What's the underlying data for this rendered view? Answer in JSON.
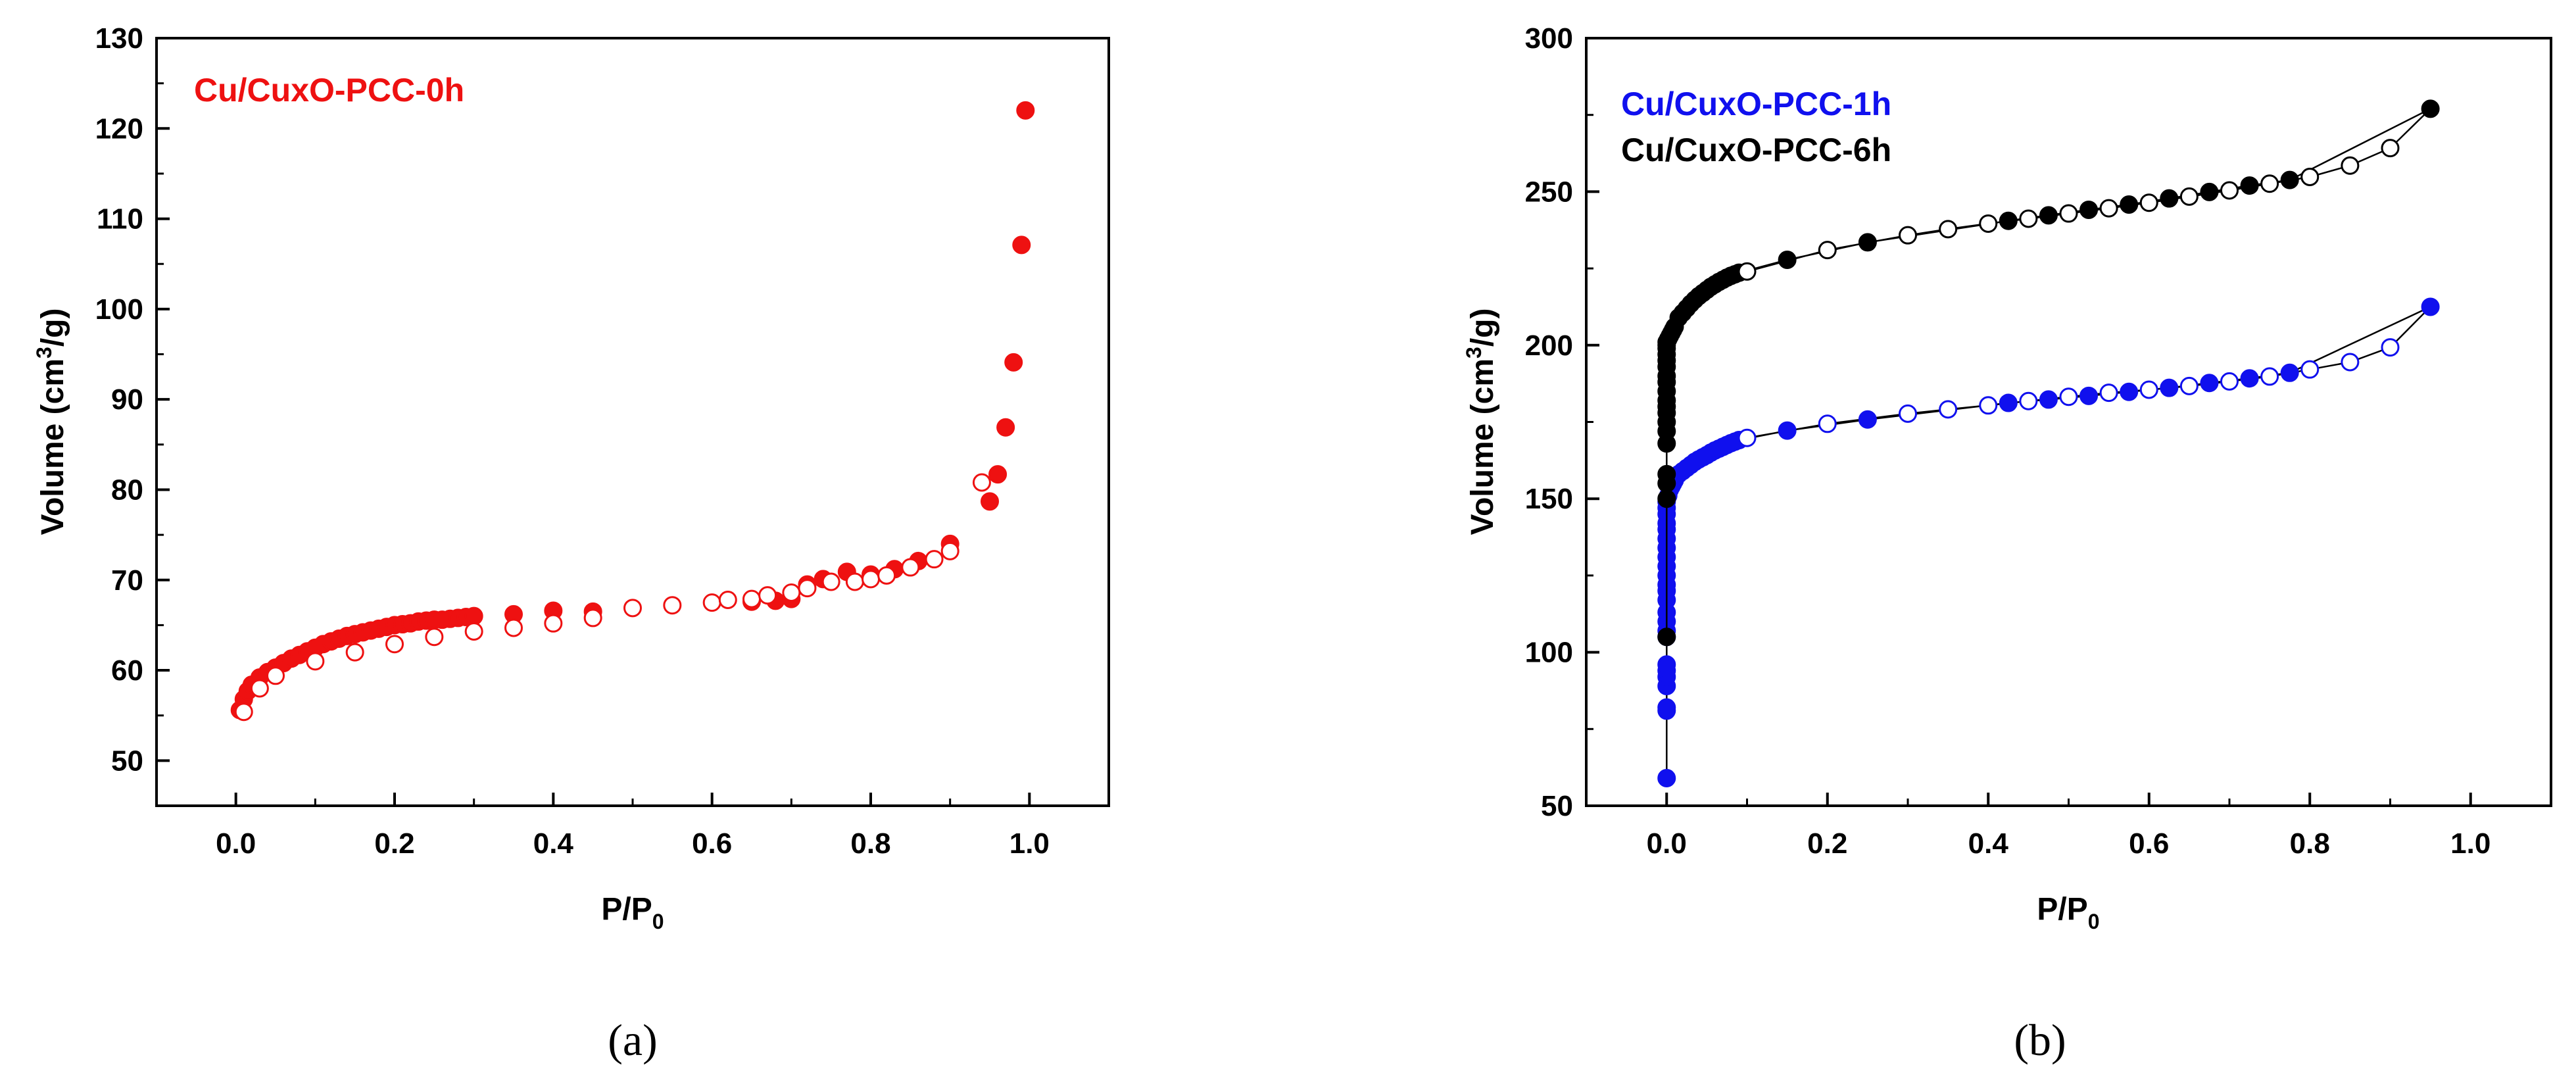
{
  "chart_data": [
    {
      "type": "scatter",
      "caption": "(a)",
      "xlabel": {
        "base": "P/P",
        "sub": "0"
      },
      "ylabel": {
        "pre": "Volume (cm",
        "sup": "3",
        "post": "/g)"
      },
      "xlim": [
        -0.1,
        1.1
      ],
      "ylim": [
        45,
        130
      ],
      "xticks": [
        0.0,
        0.2,
        0.4,
        0.6,
        0.8,
        1.0
      ],
      "xtick_labels": [
        "0.0",
        "0.2",
        "0.4",
        "0.6",
        "0.8",
        "1.0"
      ],
      "yticks": [
        50,
        60,
        70,
        80,
        90,
        100,
        110,
        120,
        130
      ],
      "ytick_labels": [
        "50",
        "60",
        "70",
        "80",
        "90",
        "100",
        "110",
        "120",
        "130"
      ],
      "legend": [
        {
          "label": "Cu/CuxO-PCC-0h",
          "color": "#ee1111"
        }
      ],
      "legend_position": "top-left",
      "series": [
        {
          "name": "Cu/CuxO-PCC-0h",
          "color": "#ee1111",
          "connected": false,
          "adsorption": {
            "x": [
              0.005,
              0.01,
              0.015,
              0.02,
              0.03,
              0.04,
              0.05,
              0.06,
              0.07,
              0.08,
              0.09,
              0.1,
              0.11,
              0.12,
              0.13,
              0.14,
              0.15,
              0.16,
              0.17,
              0.18,
              0.19,
              0.2,
              0.21,
              0.22,
              0.23,
              0.24,
              0.25,
              0.26,
              0.27,
              0.28,
              0.29,
              0.3,
              0.35,
              0.4,
              0.45,
              0.65,
              0.68,
              0.7,
              0.72,
              0.74,
              0.77,
              0.8,
              0.83,
              0.86,
              0.9,
              0.95,
              0.96,
              0.97,
              0.98,
              0.99,
              0.995
            ],
            "y": [
              55.6,
              56.8,
              57.7,
              58.4,
              59.2,
              59.8,
              60.3,
              60.8,
              61.3,
              61.7,
              62.1,
              62.5,
              62.9,
              63.2,
              63.5,
              63.8,
              64.0,
              64.2,
              64.4,
              64.6,
              64.8,
              65.0,
              65.1,
              65.2,
              65.4,
              65.5,
              65.6,
              65.6,
              65.7,
              65.8,
              65.9,
              66.0,
              66.2,
              66.6,
              66.5,
              67.6,
              67.7,
              67.9,
              69.5,
              70.1,
              70.9,
              70.6,
              71.2,
              72.1,
              74.0,
              78.7,
              81.7,
              86.9,
              94.1,
              107.1,
              122.0
            ]
          },
          "desorption": {
            "x": [
              0.01,
              0.03,
              0.05,
              0.1,
              0.15,
              0.2,
              0.25,
              0.3,
              0.35,
              0.4,
              0.45,
              0.5,
              0.55,
              0.6,
              0.62,
              0.65,
              0.67,
              0.7,
              0.72,
              0.75,
              0.78,
              0.8,
              0.82,
              0.85,
              0.88,
              0.9,
              0.94
            ],
            "y": [
              55.4,
              58.0,
              59.4,
              61.0,
              62.0,
              62.9,
              63.7,
              64.3,
              64.7,
              65.2,
              65.8,
              66.9,
              67.2,
              67.5,
              67.8,
              67.9,
              68.3,
              68.6,
              69.1,
              69.8,
              69.8,
              70.1,
              70.5,
              71.4,
              72.3,
              73.2,
              80.8
            ]
          }
        }
      ]
    },
    {
      "type": "line",
      "caption": "(b)",
      "xlabel": {
        "base": "P/P",
        "sub": "0"
      },
      "ylabel": {
        "pre": "Volume (cm",
        "sup": "3",
        "post": "/g)"
      },
      "xlim": [
        -0.1,
        1.1
      ],
      "ylim": [
        50,
        300
      ],
      "xticks": [
        0.0,
        0.2,
        0.4,
        0.6,
        0.8,
        1.0
      ],
      "xtick_labels": [
        "0.0",
        "0.2",
        "0.4",
        "0.6",
        "0.8",
        "1.0"
      ],
      "yticks": [
        50,
        100,
        150,
        200,
        250,
        300
      ],
      "ytick_labels": [
        "50",
        "100",
        "150",
        "200",
        "250",
        "300"
      ],
      "legend": [
        {
          "label": "Cu/CuxO-PCC-1h",
          "color": "#1010ee"
        },
        {
          "label": "Cu/CuxO-PCC-6h",
          "color": "#000000"
        }
      ],
      "legend_position": "top-left",
      "series": [
        {
          "name": "Cu/CuxO-PCC-1h",
          "color": "#1010ee",
          "connected": true,
          "adsorption": {
            "x": [
              0.0,
              0.0,
              0.0,
              0.0,
              0.0,
              0.0,
              0.0,
              0.0,
              0.0,
              0.0,
              0.0,
              0.0,
              0.0,
              0.0,
              0.0,
              0.0,
              0.0,
              0.0,
              0.0,
              0.0,
              0.0,
              0.0,
              0.0,
              0.0,
              0.002,
              0.004,
              0.006,
              0.008,
              0.01,
              0.015,
              0.02,
              0.025,
              0.03,
              0.035,
              0.04,
              0.045,
              0.05,
              0.055,
              0.06,
              0.065,
              0.07,
              0.075,
              0.08,
              0.085,
              0.09,
              0.15,
              0.25,
              0.425,
              0.475,
              0.525,
              0.575,
              0.625,
              0.675,
              0.725,
              0.775,
              0.95
            ],
            "y": [
              59,
              81,
              82,
              89,
              92,
              94,
              96,
              105,
              107,
              110,
              113,
              117,
              120,
              122,
              125,
              128,
              131,
              134,
              137,
              140,
              142,
              145,
              147,
              149,
              151,
              153,
              154,
              155,
              156,
              158,
              159,
              160,
              161,
              162,
              162.8,
              163.5,
              164.2,
              165,
              165.7,
              166.3,
              166.9,
              167.5,
              168.1,
              168.6,
              169.1,
              172.2,
              175.8,
              181.2,
              182.3,
              183.5,
              184.8,
              186.1,
              187.7,
              189.2,
              191,
              212.5
            ]
          },
          "desorption": {
            "x": [
              0.1,
              0.2,
              0.3,
              0.35,
              0.4,
              0.45,
              0.5,
              0.55,
              0.6,
              0.65,
              0.7,
              0.75,
              0.8,
              0.85,
              0.9
            ],
            "y": [
              169.8,
              174.4,
              177.7,
              179.1,
              180.4,
              181.8,
              183.2,
              184.5,
              185.5,
              186.7,
              188.2,
              189.8,
              192.1,
              194.5,
              199.3
            ]
          }
        },
        {
          "name": "Cu/CuxO-PCC-6h",
          "color": "#000000",
          "connected": true,
          "adsorption": {
            "x": [
              0.0,
              0.0,
              0.0,
              0.0,
              0.0,
              0.0,
              0.0,
              0.0,
              0.0,
              0.0,
              0.0,
              0.0,
              0.0,
              0.0,
              0.0,
              0.0,
              0.0,
              0.0,
              0.0,
              0.002,
              0.004,
              0.006,
              0.008,
              0.01,
              0.015,
              0.02,
              0.025,
              0.03,
              0.035,
              0.04,
              0.045,
              0.05,
              0.055,
              0.06,
              0.065,
              0.07,
              0.075,
              0.08,
              0.085,
              0.09,
              0.15,
              0.25,
              0.425,
              0.475,
              0.525,
              0.575,
              0.625,
              0.675,
              0.725,
              0.775,
              0.95
            ],
            "y": [
              105,
              150,
              155,
              158,
              168,
              172,
              175,
              178,
              180,
              182,
              185,
              188,
              190,
              193,
              195,
              197,
              199,
              200,
              201,
              202,
              203,
              204,
              205,
              206,
              209,
              210.5,
              212,
              213.5,
              214.8,
              216,
              217,
              218,
              219,
              219.8,
              220.6,
              221.3,
              222,
              222.6,
              223.1,
              223.6,
              227.8,
              233.5,
              240.5,
              242.3,
              244.1,
              245.8,
              247.8,
              249.9,
              252,
              253.8,
              277
            ]
          },
          "desorption": {
            "x": [
              0.1,
              0.2,
              0.3,
              0.35,
              0.4,
              0.45,
              0.5,
              0.55,
              0.6,
              0.65,
              0.7,
              0.75,
              0.8,
              0.85,
              0.9
            ],
            "y": [
              224,
              231,
              235.8,
              237.8,
              239.6,
              241.2,
              242.9,
              244.6,
              246.4,
              248.4,
              250.4,
              252.6,
              254.8,
              258.5,
              264.2
            ]
          }
        }
      ]
    }
  ]
}
